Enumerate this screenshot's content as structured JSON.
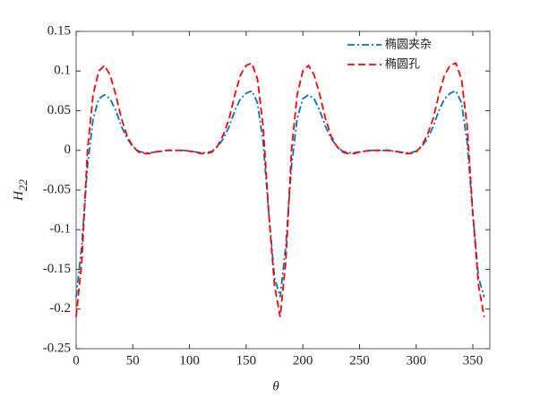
{
  "chart_data": {
    "type": "line",
    "xlabel": "θ",
    "ylabel": {
      "base": "H",
      "sub": "22"
    },
    "x": [
      0,
      5,
      10,
      15,
      20,
      25,
      30,
      35,
      40,
      45,
      50,
      55,
      60,
      65,
      70,
      75,
      80,
      85,
      90,
      95,
      100,
      105,
      110,
      115,
      120,
      125,
      130,
      135,
      140,
      145,
      150,
      155,
      160,
      165,
      170,
      175,
      180,
      185,
      190,
      195,
      200,
      205,
      210,
      215,
      220,
      225,
      230,
      235,
      240,
      245,
      250,
      255,
      260,
      265,
      270,
      275,
      280,
      285,
      290,
      295,
      300,
      305,
      310,
      315,
      320,
      325,
      330,
      335,
      340,
      345,
      350,
      355,
      360
    ],
    "series": [
      {
        "name": "椭圆夹杂",
        "color": "#0072BD",
        "dash": "dashdot",
        "values": [
          -0.185,
          -0.12,
          -0.02,
          0.04,
          0.065,
          0.07,
          0.065,
          0.05,
          0.03,
          0.015,
          0.005,
          -0.001,
          -0.003,
          -0.003,
          -0.002,
          -0.001,
          0,
          0,
          0,
          0,
          -0.001,
          -0.002,
          -0.003,
          -0.003,
          -0.001,
          0.005,
          0.015,
          0.03,
          0.05,
          0.065,
          0.072,
          0.075,
          0.06,
          0.01,
          -0.08,
          -0.16,
          -0.185,
          -0.12,
          -0.02,
          0.04,
          0.065,
          0.07,
          0.065,
          0.05,
          0.03,
          0.015,
          0.005,
          -0.001,
          -0.003,
          -0.003,
          -0.002,
          -0.001,
          0,
          0,
          0,
          0,
          -0.001,
          -0.002,
          -0.003,
          -0.003,
          -0.001,
          0.005,
          0.015,
          0.03,
          0.05,
          0.065,
          0.072,
          0.075,
          0.06,
          0.01,
          -0.08,
          -0.16,
          -0.185
        ]
      },
      {
        "name": "椭圆孔",
        "color": "#FF0000",
        "dash": "dashed",
        "values": [
          -0.21,
          -0.14,
          0.0,
          0.07,
          0.1,
          0.107,
          0.095,
          0.07,
          0.04,
          0.018,
          0.005,
          -0.002,
          -0.004,
          -0.004,
          -0.002,
          -0.001,
          0,
          0,
          0,
          0,
          -0.001,
          -0.002,
          -0.004,
          -0.004,
          -0.002,
          0.006,
          0.02,
          0.04,
          0.07,
          0.095,
          0.107,
          0.11,
          0.09,
          0.03,
          -0.08,
          -0.17,
          -0.21,
          -0.14,
          0.0,
          0.07,
          0.1,
          0.107,
          0.095,
          0.07,
          0.04,
          0.018,
          0.005,
          -0.002,
          -0.004,
          -0.004,
          -0.002,
          -0.001,
          0,
          0,
          0,
          0,
          -0.001,
          -0.002,
          -0.004,
          -0.004,
          -0.002,
          0.006,
          0.02,
          0.04,
          0.07,
          0.095,
          0.107,
          0.11,
          0.09,
          0.03,
          -0.08,
          -0.17,
          -0.21
        ]
      }
    ],
    "xlim": [
      0,
      365
    ],
    "xticks": [
      0,
      50,
      100,
      150,
      200,
      250,
      300,
      350
    ],
    "ylim": [
      -0.25,
      0.15
    ],
    "yticks": [
      -0.25,
      -0.2,
      -0.15,
      -0.1,
      -0.05,
      0,
      0.05,
      0.1,
      0.15
    ],
    "grid": false,
    "legend": "upper right"
  }
}
